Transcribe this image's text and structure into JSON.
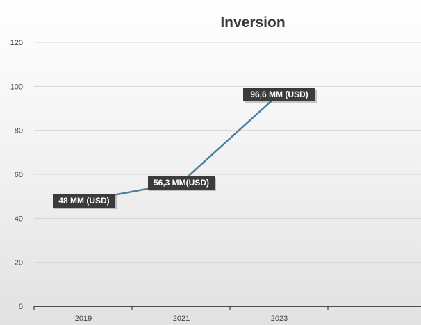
{
  "chart_data": {
    "type": "line",
    "title": "Inversion",
    "xlabel": "",
    "ylabel": "",
    "categories": [
      "2019",
      "2021",
      "2023"
    ],
    "series": [
      {
        "values": [
          48,
          56.3,
          96.6
        ]
      }
    ],
    "data_labels": [
      "48 MM (USD)",
      "56,3 MM(USD)",
      "96,6 MM (USD)"
    ],
    "ylim": [
      0,
      120
    ],
    "yticks": [
      "0",
      "20",
      "40",
      "60",
      "80",
      "100",
      "120"
    ],
    "grid": true,
    "legend": "none",
    "colors": {
      "line": "#4a7f9e",
      "label_bg": "#3b3b3b",
      "label_text": "#ffffff"
    }
  }
}
